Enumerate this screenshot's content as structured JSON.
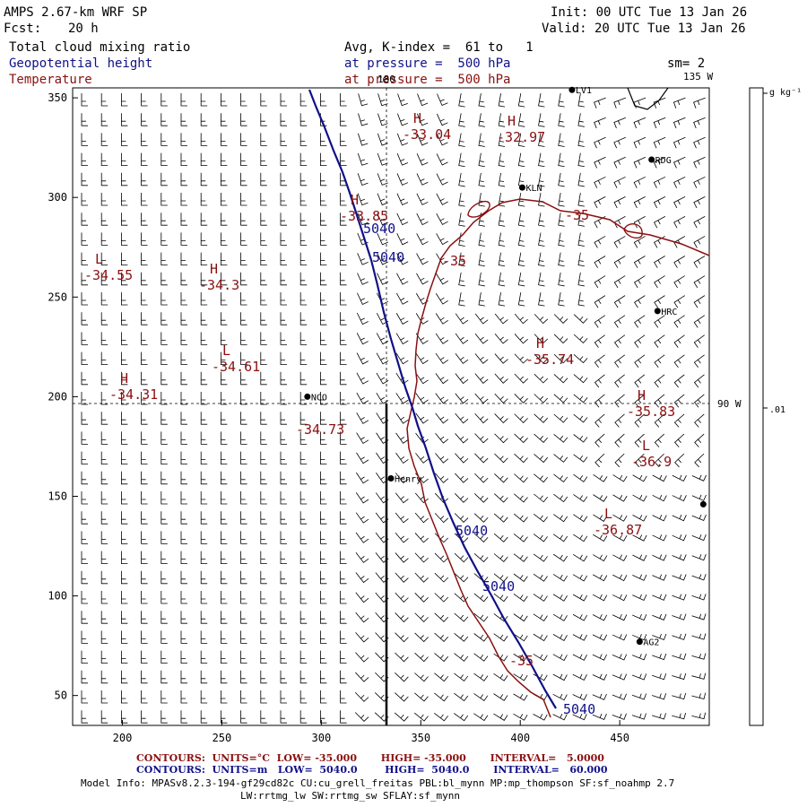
{
  "header": {
    "title": "AMPS 2.67-km WRF SP",
    "forecast_label": "Fcst:",
    "forecast_value": "20 h",
    "init": "Init: 00 UTC Tue 13 Jan 26",
    "valid": "Valid: 20 UTC Tue 13 Jan 26",
    "field1": "Total cloud mixing ratio",
    "field2": "Geopotential height",
    "field3": "Temperature",
    "avg": "Avg, K-index =  61 to   1",
    "pressure1": "at pressure =  500 hPa",
    "pressure2": "at pressure =  500 hPa",
    "sm": "sm= 2"
  },
  "colors": {
    "height": "#10108a",
    "temperature": "#8a1010",
    "barb": "#000000"
  },
  "map": {
    "x_ticks": [
      200,
      250,
      300,
      350,
      400,
      450
    ],
    "y_ticks": [
      50,
      100,
      150,
      200,
      250,
      300,
      350
    ],
    "x_range": [
      175,
      495
    ],
    "y_range": [
      35,
      355
    ],
    "meridian_label_top": "180",
    "meridian_label_135": "135 W",
    "meridian_label_90": "90 W"
  },
  "stations": [
    {
      "name": "LV1",
      "x": 426,
      "y": 354
    },
    {
      "name": "RDG",
      "x": 466,
      "y": 319
    },
    {
      "name": "KLN",
      "x": 401,
      "y": 305
    },
    {
      "name": "HRC",
      "x": 469,
      "y": 243
    },
    {
      "name": "NCO",
      "x": 293,
      "y": 200
    },
    {
      "name": "Henry",
      "x": 335,
      "y": 159
    },
    {
      "name": "",
      "x": 492,
      "y": 146
    },
    {
      "name": "AG2",
      "x": 460,
      "y": 77
    }
  ],
  "extrema": [
    {
      "type": "H",
      "value": "-33.04",
      "x": 455,
      "y": 137
    },
    {
      "type": "H",
      "value": "-32.97",
      "x": 560,
      "y": 140
    },
    {
      "type": "H",
      "value": "-33.85",
      "x": 385,
      "y": 228
    },
    {
      "type": "L",
      "value": "-34.55",
      "x": 100,
      "y": 294
    },
    {
      "type": "H",
      "value": "-34.3",
      "x": 228,
      "y": 305
    },
    {
      "type": "L",
      "value": "-34.61",
      "x": 242,
      "y": 396
    },
    {
      "type": "H",
      "value": "-34.31",
      "x": 128,
      "y": 427
    },
    {
      "type": "H",
      "value": "-35.74",
      "x": 592,
      "y": 388
    },
    {
      "type": "H",
      "value": "-35.83",
      "x": 705,
      "y": 446
    },
    {
      "type": "L",
      "value": "-36.9",
      "x": 710,
      "y": 502
    },
    {
      "type": "L",
      "value": "-36.87",
      "x": 668,
      "y": 578
    }
  ],
  "value_labels": [
    {
      "text": "-34.73",
      "x": 330,
      "y": 484,
      "kind": "temperature"
    },
    {
      "text": "-35",
      "x": 630,
      "y": 245,
      "kind": "temperature"
    },
    {
      "text": "-35",
      "x": 493,
      "y": 296,
      "kind": "temperature"
    },
    {
      "text": "-35",
      "x": 568,
      "y": 742,
      "kind": "temperature"
    },
    {
      "text": "5040",
      "x": 405,
      "y": 260,
      "kind": "height"
    },
    {
      "text": "5040",
      "x": 415,
      "y": 292,
      "kind": "height"
    },
    {
      "text": "5040",
      "x": 508,
      "y": 597,
      "kind": "height"
    },
    {
      "text": "5040",
      "x": 538,
      "y": 659,
      "kind": "height"
    },
    {
      "text": "5040",
      "x": 628,
      "y": 796,
      "kind": "height"
    }
  ],
  "colorbar": {
    "unit": "g kg⁻¹",
    "tick_label": ".01"
  },
  "footer": {
    "temp_contours": "CONTOURS:  UNITS=°C  LOW= -35.000       HIGH= -35.000       INTERVAL=   5.0000",
    "height_contours": "CONTOURS:  UNITS=m   LOW=  5040.0        HIGH=  5040.0       INTERVAL=   60.000",
    "model_info1": "Model Info: MPASv8.2.3-194-gf29cd82c CU:cu_grell_freitas PBL:bl_mynn MP:mp_thompson SF:sf_noahmp 2.7",
    "model_info2": "LW:rrtmg_lw SW:rrtmg_sw SFLAY:sf_mynn"
  }
}
